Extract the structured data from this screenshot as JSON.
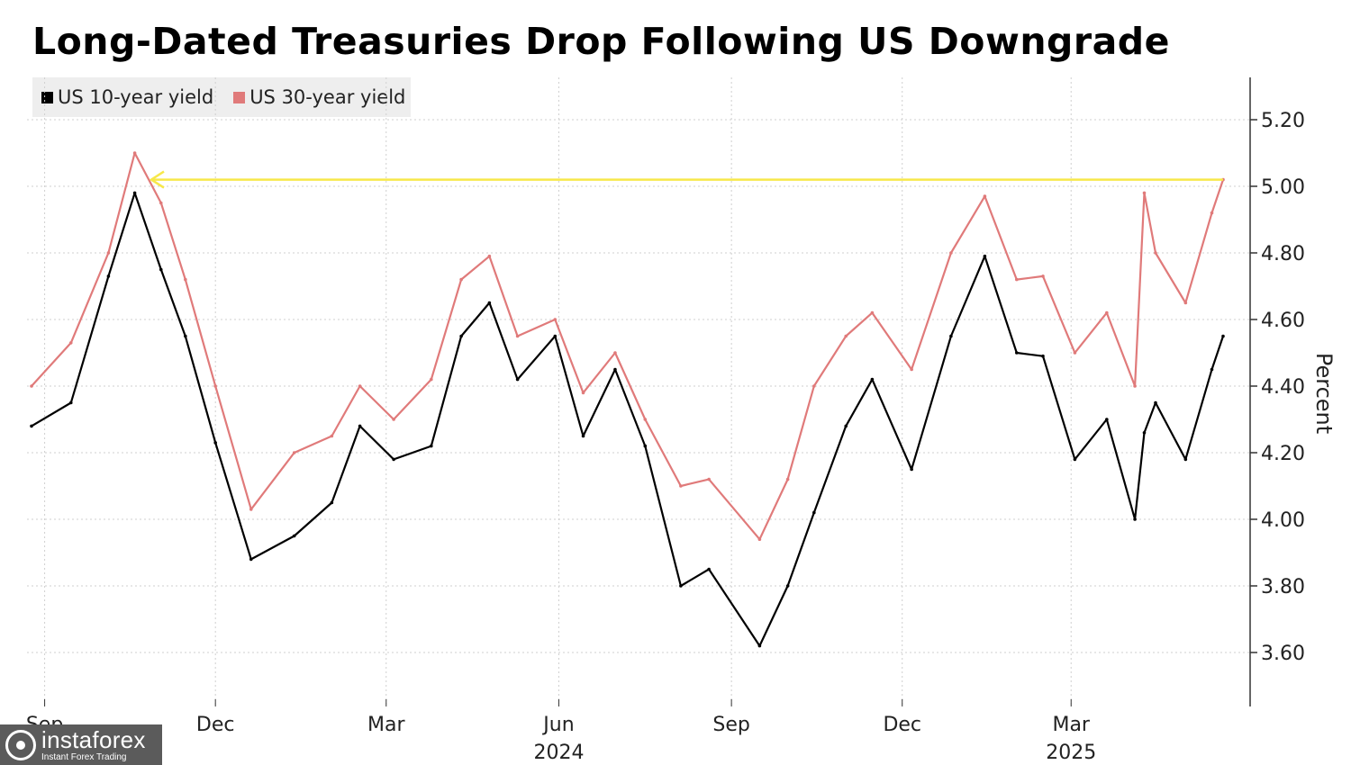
{
  "chart_data": {
    "type": "line",
    "title": "Long-Dated Treasuries Drop Following US Downgrade",
    "ylabel": "Percent",
    "ylim": [
      3.45,
      5.33
    ],
    "y_ticks": [
      3.6,
      3.8,
      4.0,
      4.2,
      4.4,
      4.6,
      4.8,
      5.0,
      5.2
    ],
    "y_tick_labels": [
      "3.60",
      "3.80",
      "4.00",
      "4.20",
      "4.40",
      "4.60",
      "4.80",
      "5.00",
      "5.20"
    ],
    "x_tick_labels": [
      "Sep",
      "Dec",
      "Mar",
      "Jun",
      "Sep",
      "Dec",
      "Mar"
    ],
    "x_year_labels": [
      "2024",
      "2025"
    ],
    "grid": true,
    "legend_position": "top-left",
    "annotation": "horizontal arrow marking the 5.00% level of the 30-year yield",
    "x": [
      "2023-08-25",
      "2023-09-15",
      "2023-10-05",
      "2023-10-19",
      "2023-11-02",
      "2023-11-15",
      "2023-12-01",
      "2023-12-20",
      "2024-01-12",
      "2024-02-01",
      "2024-02-16",
      "2024-03-05",
      "2024-03-25",
      "2024-04-10",
      "2024-04-25",
      "2024-05-10",
      "2024-05-30",
      "2024-06-14",
      "2024-07-01",
      "2024-07-17",
      "2024-08-05",
      "2024-08-20",
      "2024-09-16",
      "2024-10-01",
      "2024-10-15",
      "2024-11-01",
      "2024-11-15",
      "2024-12-06",
      "2024-12-27",
      "2025-01-14",
      "2025-01-31",
      "2025-02-14",
      "2025-03-03",
      "2025-03-20",
      "2025-04-04",
      "2025-04-09",
      "2025-04-15",
      "2025-05-01",
      "2025-05-15",
      "2025-05-21"
    ],
    "series": [
      {
        "name": "US 10-year yield",
        "color": "#000000",
        "values": [
          4.28,
          4.35,
          4.73,
          4.98,
          4.75,
          4.55,
          4.23,
          3.88,
          3.95,
          4.05,
          4.28,
          4.18,
          4.22,
          4.55,
          4.65,
          4.42,
          4.55,
          4.25,
          4.45,
          4.22,
          3.8,
          3.85,
          3.62,
          3.8,
          4.02,
          4.28,
          4.42,
          4.15,
          4.55,
          4.79,
          4.5,
          4.49,
          4.18,
          4.3,
          4.0,
          4.26,
          4.35,
          4.18,
          4.45,
          4.55
        ]
      },
      {
        "name": "US 30-year yield",
        "color": "#e07a7a",
        "values": [
          4.4,
          4.53,
          4.8,
          5.1,
          4.95,
          4.72,
          4.4,
          4.03,
          4.2,
          4.25,
          4.4,
          4.3,
          4.42,
          4.72,
          4.79,
          4.55,
          4.6,
          4.38,
          4.5,
          4.3,
          4.1,
          4.12,
          3.94,
          4.12,
          4.4,
          4.55,
          4.62,
          4.45,
          4.8,
          4.97,
          4.72,
          4.73,
          4.5,
          4.62,
          4.4,
          4.98,
          4.8,
          4.65,
          4.92,
          5.02
        ]
      }
    ]
  },
  "legend": {
    "items": [
      {
        "label": "US 10-year yield",
        "color": "#000000"
      },
      {
        "label": "US 30-year yield",
        "color": "#e07a7a"
      }
    ]
  },
  "watermark": {
    "brand": "instaforex",
    "tagline": "Instant Forex Trading"
  },
  "colors": {
    "annotation_arrow": "#f7e84a",
    "grid": "#cfcfcf"
  }
}
